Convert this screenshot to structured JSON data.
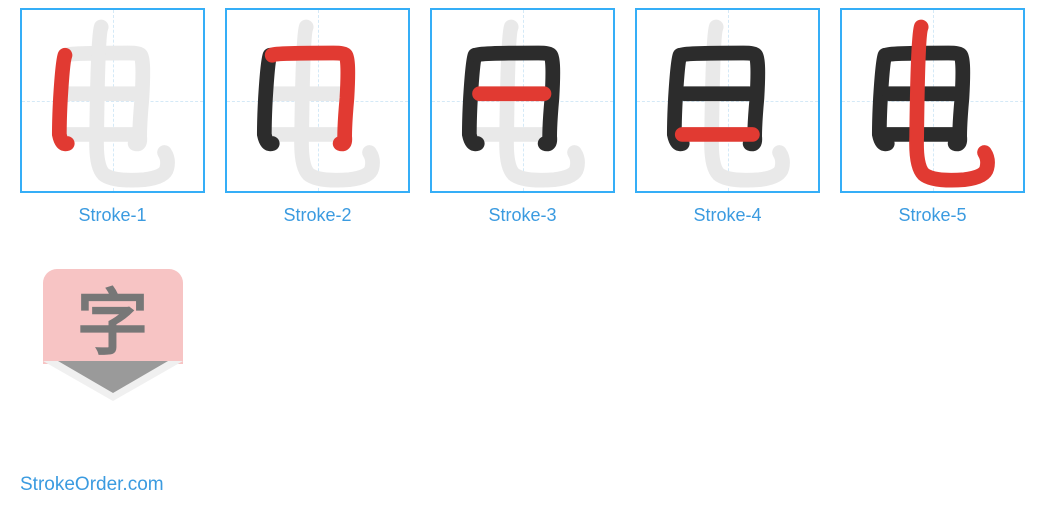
{
  "border_color": "#35aef7",
  "label_color": "#3b9be0",
  "guide_color": "#d4e9f7",
  "ghost_color": "#e9e9e9",
  "drawn_color": "#2c2c2c",
  "current_color": "#e13a32",
  "placeholder": {
    "badge_color": "#f7c4c4",
    "char": "字",
    "char_color": "#777777"
  },
  "footer": "StrokeOrder.com",
  "strokes": [
    {
      "label": "Stroke-1"
    },
    {
      "label": "Stroke-2"
    },
    {
      "label": "Stroke-3"
    },
    {
      "label": "Stroke-4"
    },
    {
      "label": "Stroke-5"
    }
  ],
  "glyph": {
    "paths": [
      "M 38 40 Q 36 45 34 78 Q 33 96 33 110 Q 35 120 40 118",
      "M 40 40 Q 38 38 94 38 Q 104 38 105 40 Q 108 44 106 78 Q 104 100 104 112 Q 105 120 100 118",
      "M 42 74 L 99 74",
      "M 40 110 L 102 110",
      "M 70 15 Q 67 22 66 112 Q 65 138 72 145 Q 80 152 108 150 Q 126 148 128 140 Q 130 132 126 126"
    ],
    "stroke_width": 13
  }
}
